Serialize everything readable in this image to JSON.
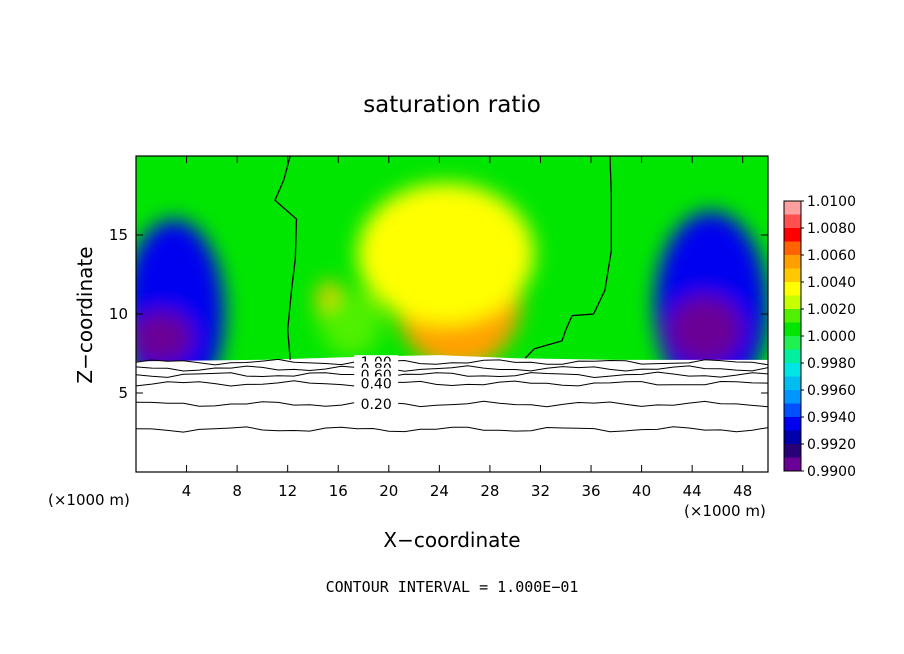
{
  "chart_data": {
    "type": "heatmap",
    "title": "saturation ratio",
    "xlabel": "X−coordinate",
    "ylabel": "Z−coordinate",
    "x_unit_left": "(×1000 m)",
    "x_unit_right": "(×1000 m)",
    "xlim": [
      0,
      50
    ],
    "ylim": [
      0,
      20
    ],
    "xticks": [
      4,
      8,
      12,
      16,
      20,
      24,
      28,
      32,
      36,
      40,
      44,
      48
    ],
    "yticks": [
      5,
      10,
      15
    ],
    "footer": "CONTOUR INTERVAL = 1.000E−01",
    "colorbar": {
      "ticks": [
        "1.0100",
        "1.0080",
        "1.0060",
        "1.0040",
        "1.0020",
        "1.0000",
        "0.9980",
        "0.9960",
        "0.9940",
        "0.9920",
        "0.9900"
      ],
      "colors": [
        "#FFA0A0",
        "#FF5050",
        "#FF0000",
        "#FF6400",
        "#FFA000",
        "#FFC800",
        "#FFFF00",
        "#C8FF00",
        "#50F000",
        "#00E600",
        "#20F050",
        "#00F0A0",
        "#00E6E6",
        "#00BEF0",
        "#0096FF",
        "#0050FF",
        "#0000F0",
        "#0000AA",
        "#280078",
        "#6A0096"
      ],
      "min": 0.99,
      "max": 1.01
    },
    "terrain_top": [
      [
        0,
        7.0
      ],
      [
        10,
        7.1
      ],
      [
        18,
        7.3
      ],
      [
        24,
        7.4
      ],
      [
        30,
        7.2
      ],
      [
        38,
        7.1
      ],
      [
        50,
        7.1
      ]
    ],
    "terrain_contours": [
      {
        "label": "1.00",
        "z": 6.95
      },
      {
        "label": "0.80",
        "z": 6.55
      },
      {
        "label": "0.60",
        "z": 6.15
      },
      {
        "label": "0.40",
        "z": 5.6
      },
      {
        "label": "0.20",
        "z": 4.3
      },
      {
        "label": "",
        "z": 2.7
      }
    ],
    "contour_1_0": {
      "left": [
        [
          12.2,
          7.1
        ],
        [
          12.0,
          9.0
        ],
        [
          12.3,
          11.5
        ],
        [
          12.6,
          13.5
        ],
        [
          12.7,
          16.0
        ],
        [
          11.0,
          17.2
        ],
        [
          11.7,
          18.5
        ],
        [
          12.2,
          20.0
        ]
      ],
      "right": [
        [
          37.5,
          20.0
        ],
        [
          37.6,
          17.5
        ],
        [
          37.6,
          14.0
        ],
        [
          37.1,
          11.5
        ],
        [
          36.2,
          10.0
        ],
        [
          34.5,
          9.9
        ],
        [
          34.0,
          9.0
        ],
        [
          33.7,
          8.3
        ],
        [
          31.5,
          7.8
        ],
        [
          30.8,
          7.2
        ]
      ]
    },
    "blobs": [
      {
        "x": 25.5,
        "z": 11.0,
        "rx": 5.0,
        "rz": 4.5,
        "v": 1.006
      },
      {
        "x": 24.5,
        "z": 13.8,
        "rx": 7.0,
        "rz": 4.5,
        "v": 1.0035
      },
      {
        "x": 15.3,
        "z": 10.8,
        "rx": 1.0,
        "rz": 1.3,
        "v": 1.0045
      },
      {
        "x": 17.0,
        "z": 9.3,
        "rx": 2.4,
        "rz": 2.0,
        "v": 1.002
      },
      {
        "x": 3.0,
        "z": 10.0,
        "rx": 4.0,
        "rz": 6.0,
        "v": 0.9935
      },
      {
        "x": 2.0,
        "z": 8.5,
        "rx": 2.5,
        "rz": 1.7,
        "v": 0.9905
      },
      {
        "x": 45.5,
        "z": 10.5,
        "rx": 4.5,
        "rz": 6.0,
        "v": 0.9935
      },
      {
        "x": 45.0,
        "z": 9.0,
        "rx": 3.0,
        "rz": 2.2,
        "v": 0.9905
      }
    ]
  }
}
